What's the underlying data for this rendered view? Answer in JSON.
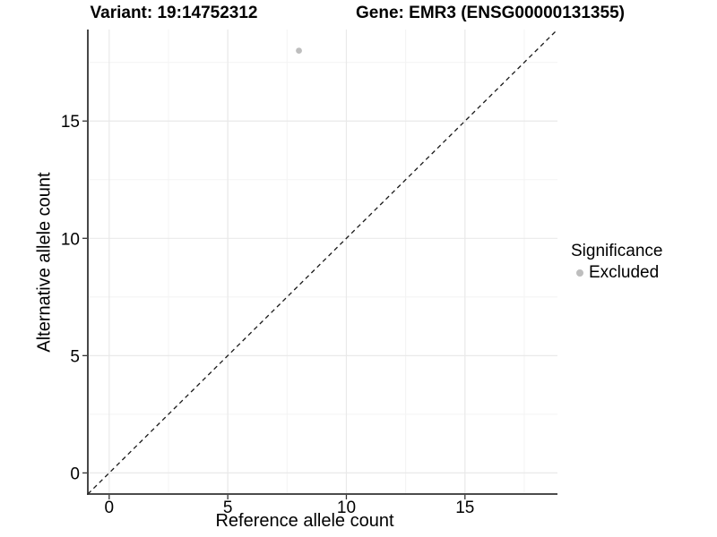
{
  "chart_data": {
    "type": "scatter",
    "title_left": "Variant: 19:14752312",
    "title_right": "Gene: EMR3 (ENSG00000131355)",
    "xlabel": "Reference allele count",
    "ylabel": "Alternative allele count",
    "xlim": [
      -0.9,
      18.9
    ],
    "ylim": [
      -0.9,
      18.9
    ],
    "x_ticks": [
      0,
      5,
      10,
      15
    ],
    "y_ticks": [
      0,
      5,
      10,
      15
    ],
    "x_minor_ticks": [
      2.5,
      7.5,
      12.5,
      17.5
    ],
    "y_minor_ticks": [
      2.5,
      7.5,
      12.5,
      17.5
    ],
    "grid": "major and minor, light gray on white",
    "points": [
      {
        "x": 8,
        "y": 18,
        "series": "Excluded"
      }
    ],
    "series": [
      {
        "name": "Excluded",
        "color": "#bebebe"
      }
    ],
    "reference_line": {
      "type": "identity y=x",
      "style": "dashed",
      "color": "#1a1a1a"
    },
    "legend": {
      "title": "Significance",
      "position": "right",
      "entries": [
        {
          "label": "Excluded",
          "color": "#bebebe"
        }
      ]
    },
    "colors": {
      "background": "#ffffff",
      "axis_line": "#333333",
      "tick_mark": "#333333",
      "text": "#000000",
      "grid_major": "#e9e9e9",
      "grid_minor": "#f4f4f4"
    }
  }
}
